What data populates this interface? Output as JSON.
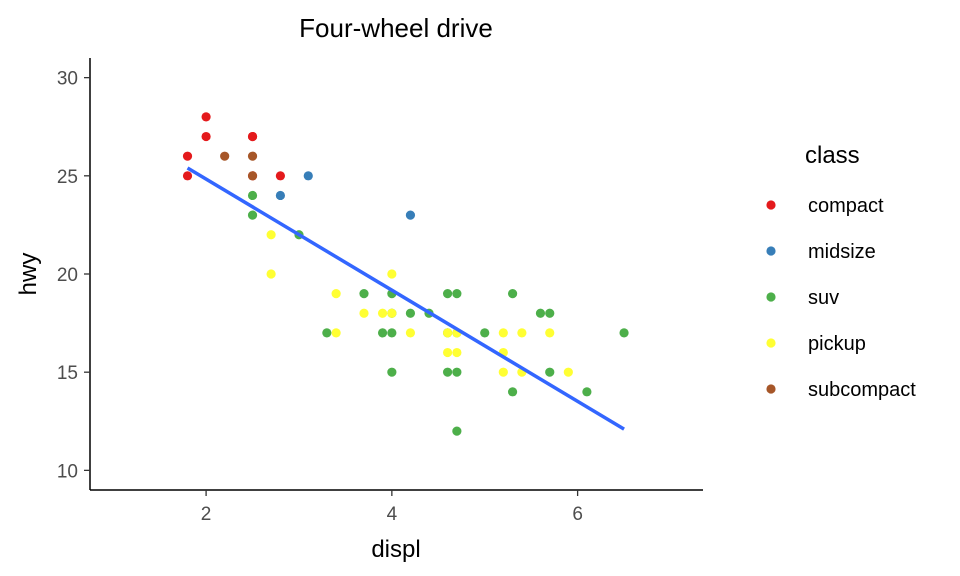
{
  "chart_data": {
    "type": "scatter",
    "title": "Four-wheel drive",
    "xlabel": "displ",
    "ylabel": "hwy",
    "xlim": [
      0.75,
      7.35
    ],
    "ylim": [
      9.0,
      31.0
    ],
    "xticks": [
      2,
      4,
      6
    ],
    "yticks": [
      10,
      15,
      20,
      25,
      30
    ],
    "grid": false,
    "legend": {
      "title": "class",
      "position": "right",
      "entries": [
        {
          "label": "compact",
          "color": "#E41A1C"
        },
        {
          "label": "midsize",
          "color": "#377EB8"
        },
        {
          "label": "suv",
          "color": "#4DAF4A"
        },
        {
          "label": "pickup",
          "color": "#FFFF33"
        },
        {
          "label": "subcompact",
          "color": "#A65628"
        }
      ]
    },
    "series": [
      {
        "name": "compact",
        "color": "#E41A1C",
        "x": [
          1.8,
          1.8,
          2.0,
          2.0,
          2.5,
          2.5,
          2.5,
          2.8
        ],
        "y": [
          26,
          25,
          28,
          27,
          27,
          25,
          27,
          25
        ]
      },
      {
        "name": "midsize",
        "color": "#377EB8",
        "x": [
          2.8,
          3.1,
          4.2
        ],
        "y": [
          24,
          25,
          23
        ]
      },
      {
        "name": "suv",
        "color": "#4DAF4A",
        "x": [
          2.5,
          2.5,
          3.0,
          3.3,
          3.7,
          3.9,
          4.0,
          4.0,
          4.0,
          4.0,
          4.2,
          4.4,
          4.6,
          4.6,
          4.7,
          4.7,
          4.7,
          5.0,
          5.3,
          5.3,
          5.6,
          5.7,
          5.7,
          6.1,
          6.5,
          4.7,
          4.6
        ],
        "y": [
          24,
          23,
          22,
          17,
          19,
          17,
          19,
          18,
          17,
          15,
          18,
          18,
          19,
          15,
          19,
          15,
          12,
          17,
          19,
          14,
          18,
          18,
          15,
          14,
          17,
          17,
          17
        ]
      },
      {
        "name": "pickup",
        "color": "#FFFF33",
        "x": [
          2.7,
          2.7,
          3.4,
          3.4,
          3.7,
          3.9,
          4.0,
          4.0,
          4.2,
          4.6,
          4.6,
          4.7,
          4.7,
          5.2,
          5.2,
          5.2,
          5.4,
          5.4,
          5.7,
          5.9
        ],
        "y": [
          22,
          20,
          19,
          17,
          18,
          18,
          20,
          18,
          17,
          17,
          16,
          17,
          16,
          17,
          16,
          15,
          17,
          15,
          17,
          15
        ]
      },
      {
        "name": "subcompact",
        "color": "#A65628",
        "x": [
          2.2,
          2.5,
          2.5
        ],
        "y": [
          26,
          26,
          25
        ]
      }
    ],
    "trend_line": {
      "x": [
        1.8,
        6.5
      ],
      "y": [
        25.4,
        12.1
      ],
      "color": "#3366FF"
    }
  }
}
